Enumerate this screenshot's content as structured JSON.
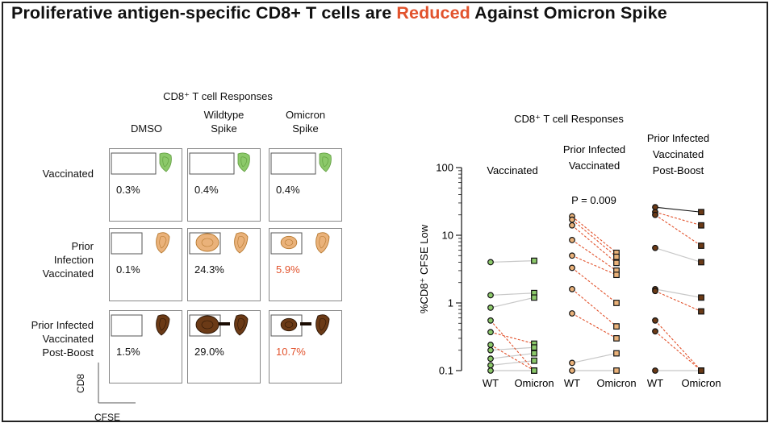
{
  "title": {
    "part1": "Proliferative antigen-specific CD8+ T cells are ",
    "highlight": "Reduced",
    "part2": " Against Omicron Spike"
  },
  "flow": {
    "heading": "CD8⁺ T cell Responses",
    "columns": [
      {
        "line1": "DMSO",
        "line2": ""
      },
      {
        "line1": "Wildtype",
        "line2": "Spike"
      },
      {
        "line1": "Omicron",
        "line2": "Spike"
      }
    ],
    "rows": [
      {
        "label": [
          "Vaccinated"
        ],
        "color": "#8cc96a",
        "percents": [
          "0.3%",
          "0.4%",
          "0.4%"
        ],
        "highlight": [
          false,
          false,
          false
        ]
      },
      {
        "label": [
          "Prior",
          "Infection",
          "Vaccinated"
        ],
        "color": "#eab27a",
        "percents": [
          "0.1%",
          "24.3%",
          "5.9%"
        ],
        "highlight": [
          false,
          false,
          true
        ]
      },
      {
        "label": [
          "Prior Infected",
          "Vaccinated",
          "Post-Boost"
        ],
        "color": "#6b3a16",
        "percents": [
          "1.5%",
          "29.0%",
          "10.7%"
        ],
        "highlight": [
          false,
          false,
          true
        ]
      }
    ],
    "axis_y": "CD8",
    "axis_x": "CFSE",
    "highlight_color": "#e2532d"
  },
  "chart_data": {
    "type": "scatter",
    "title": "CD8⁺ T cell Responses",
    "ylabel": "%CD8⁺ CFSE Low",
    "yscale": "log",
    "ylim": [
      0.1,
      100
    ],
    "yticks": [
      "0.1",
      "1",
      "10",
      "100"
    ],
    "annotation": "P = 0.009",
    "groups": [
      {
        "name": "Vaccinated",
        "header": [
          "Vaccinated"
        ],
        "point_color": "#8cc96a",
        "categories": [
          "WT",
          "Omicron"
        ],
        "pairs": [
          {
            "wt": 4.0,
            "om": 4.2,
            "line": "gray"
          },
          {
            "wt": 1.3,
            "om": 1.4,
            "line": "gray"
          },
          {
            "wt": 0.85,
            "om": 1.2,
            "line": "gray"
          },
          {
            "wt": 0.55,
            "om": 0.1,
            "line": "red"
          },
          {
            "wt": 0.37,
            "om": 0.25,
            "line": "red"
          },
          {
            "wt": 0.24,
            "om": 0.1,
            "line": "red"
          },
          {
            "wt": 0.2,
            "om": 0.22,
            "line": "gray"
          },
          {
            "wt": 0.15,
            "om": 0.18,
            "line": "gray"
          },
          {
            "wt": 0.12,
            "om": 0.14,
            "line": "gray"
          },
          {
            "wt": 0.1,
            "om": 0.1,
            "line": "gray"
          }
        ]
      },
      {
        "name": "Prior Infected Vaccinated",
        "header": [
          "Prior Infected",
          "Vaccinated"
        ],
        "point_color": "#eab27a",
        "categories": [
          "WT",
          "Omicron"
        ],
        "pairs": [
          {
            "wt": 19.0,
            "om": 5.5,
            "line": "red"
          },
          {
            "wt": 17.0,
            "om": 4.8,
            "line": "red"
          },
          {
            "wt": 14.0,
            "om": 3.9,
            "line": "red"
          },
          {
            "wt": 8.5,
            "om": 3.0,
            "line": "red"
          },
          {
            "wt": 5.0,
            "om": 2.6,
            "line": "red"
          },
          {
            "wt": 3.3,
            "om": 1.0,
            "line": "red"
          },
          {
            "wt": 1.6,
            "om": 0.45,
            "line": "red"
          },
          {
            "wt": 0.7,
            "om": 0.3,
            "line": "red"
          },
          {
            "wt": 0.13,
            "om": 0.18,
            "line": "gray"
          },
          {
            "wt": 0.1,
            "om": 0.1,
            "line": "gray"
          }
        ]
      },
      {
        "name": "Prior Infected Vaccinated Post-Boost",
        "header": [
          "Prior Infected",
          "Vaccinated",
          "Post-Boost"
        ],
        "point_color": "#6b3a16",
        "categories": [
          "WT",
          "Omicron"
        ],
        "pairs": [
          {
            "wt": 26.0,
            "om": 22.0,
            "line": "black"
          },
          {
            "wt": 22.0,
            "om": 14.0,
            "line": "red"
          },
          {
            "wt": 20.0,
            "om": 7.0,
            "line": "red"
          },
          {
            "wt": 6.5,
            "om": 4.0,
            "line": "gray"
          },
          {
            "wt": 1.6,
            "om": 1.2,
            "line": "gray"
          },
          {
            "wt": 1.5,
            "om": 0.75,
            "line": "red"
          },
          {
            "wt": 0.55,
            "om": 0.1,
            "line": "red"
          },
          {
            "wt": 0.38,
            "om": 0.1,
            "line": "red"
          },
          {
            "wt": 0.1,
            "om": 0.1,
            "line": "gray"
          }
        ]
      }
    ]
  }
}
